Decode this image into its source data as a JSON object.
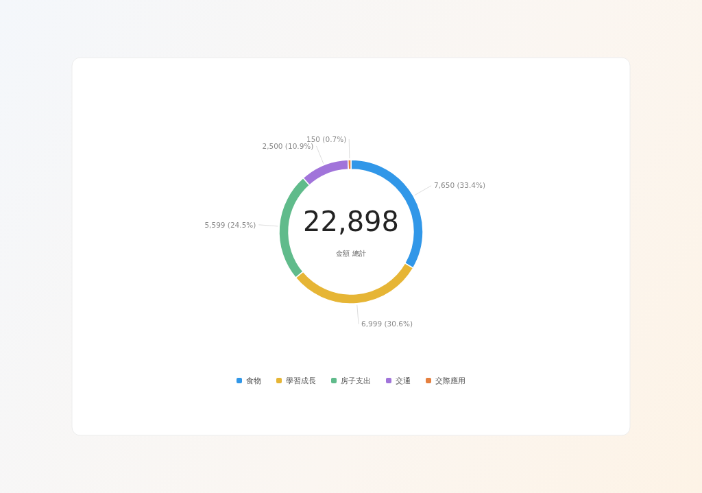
{
  "chart_data": {
    "type": "donut",
    "categories": [
      "食物",
      "學習成長",
      "房子支出",
      "交通",
      "交際應用"
    ],
    "values": [
      7650,
      6999,
      5599,
      2500,
      150
    ],
    "colors": [
      "#3197e8",
      "#e6b535",
      "#60bb8b",
      "#a174da",
      "#e5803f"
    ],
    "value_labels": [
      "7,650 (33.4%)",
      "6,999 (30.6%)",
      "5,599 (24.5%)",
      "2,500 (10.9%)",
      "150 (0.7%)"
    ],
    "annotations": [
      "22,898",
      "金額 總計"
    ],
    "legend": "bottom"
  }
}
